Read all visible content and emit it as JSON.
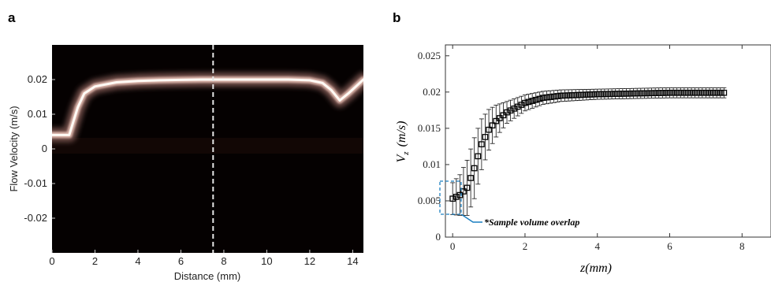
{
  "panel_a": {
    "letter": "a",
    "ylabel": "Flow Velocity (m/s)",
    "xlabel": "Distance (mm)"
  },
  "panel_b": {
    "letter": "b",
    "ylabel_main": "V",
    "ylabel_sub": "z",
    "ylabel_unit": "(m/s)",
    "xlabel_main": "z",
    "xlabel_unit": "(mm)",
    "annotation": "*Sample volume overlap",
    "annotation_color": "#1a7fc1"
  },
  "chart_data": [
    {
      "type": "heatmap",
      "colormap": "black-to-pink",
      "x_ticks": [
        "0",
        "2",
        "4",
        "6",
        "8",
        "10",
        "12",
        "14"
      ],
      "y_ticks": [
        "0.02",
        "0.01",
        "0",
        "-0.01",
        "-0.02"
      ],
      "xlim": [
        0,
        14.5
      ],
      "ylim": [
        -0.03,
        0.03
      ],
      "marker_line_x": 7.5,
      "ridge": {
        "x": [
          0,
          0.8,
          1.0,
          1.2,
          1.5,
          2,
          3,
          4,
          5,
          6,
          7,
          8,
          9,
          10,
          11,
          12,
          12.6,
          13.0,
          13.4,
          13.8,
          14.5
        ],
        "y": [
          0.004,
          0.004,
          0.008,
          0.012,
          0.016,
          0.018,
          0.0192,
          0.0196,
          0.0198,
          0.0199,
          0.02,
          0.02,
          0.02,
          0.02,
          0.02,
          0.0198,
          0.019,
          0.017,
          0.014,
          0.016,
          0.02
        ]
      }
    },
    {
      "type": "scatter",
      "marker": "square",
      "x_ticks": [
        "0",
        "2",
        "4",
        "6",
        "8"
      ],
      "y_ticks": [
        "0",
        "0.005",
        "0.01",
        "0.015",
        "0.02",
        "0.025"
      ],
      "xlim": [
        -0.2,
        8.8
      ],
      "ylim": [
        0,
        0.0265
      ],
      "x": [
        0,
        0.2,
        0.4,
        0.6,
        0.8,
        1.0,
        1.2,
        1.5,
        2.0,
        2.5,
        3.0,
        4.0,
        5.0,
        6.0,
        7.0,
        7.5
      ],
      "y": [
        0.0053,
        0.0058,
        0.0068,
        0.0095,
        0.0128,
        0.0148,
        0.016,
        0.0172,
        0.0185,
        0.0192,
        0.0195,
        0.0197,
        0.0198,
        0.0199,
        0.0199,
        0.0199
      ],
      "err": [
        0.0022,
        0.0028,
        0.0038,
        0.0042,
        0.0035,
        0.0028,
        0.0022,
        0.0015,
        0.0011,
        0.0009,
        0.0008,
        0.0007,
        0.0007,
        0.0007,
        0.0007,
        0.0007
      ]
    }
  ]
}
